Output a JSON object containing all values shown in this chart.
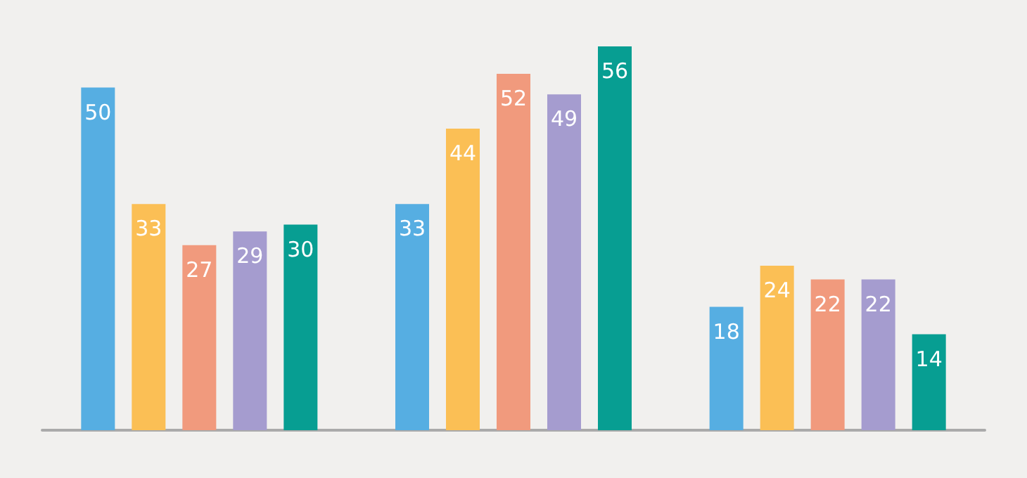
{
  "chart_data": {
    "type": "bar",
    "categories": [
      null,
      null,
      null
    ],
    "series": [
      {
        "color": "#56aee2",
        "values": [
          50,
          33,
          18
        ]
      },
      {
        "color": "#fbbf55",
        "values": [
          33,
          44,
          24
        ]
      },
      {
        "color": "#f19a7d",
        "values": [
          27,
          52,
          22
        ]
      },
      {
        "color": "#a59ccf",
        "values": [
          29,
          49,
          22
        ]
      },
      {
        "color": "#079e92",
        "values": [
          30,
          56,
          14
        ]
      }
    ],
    "data_labels": true
  }
}
